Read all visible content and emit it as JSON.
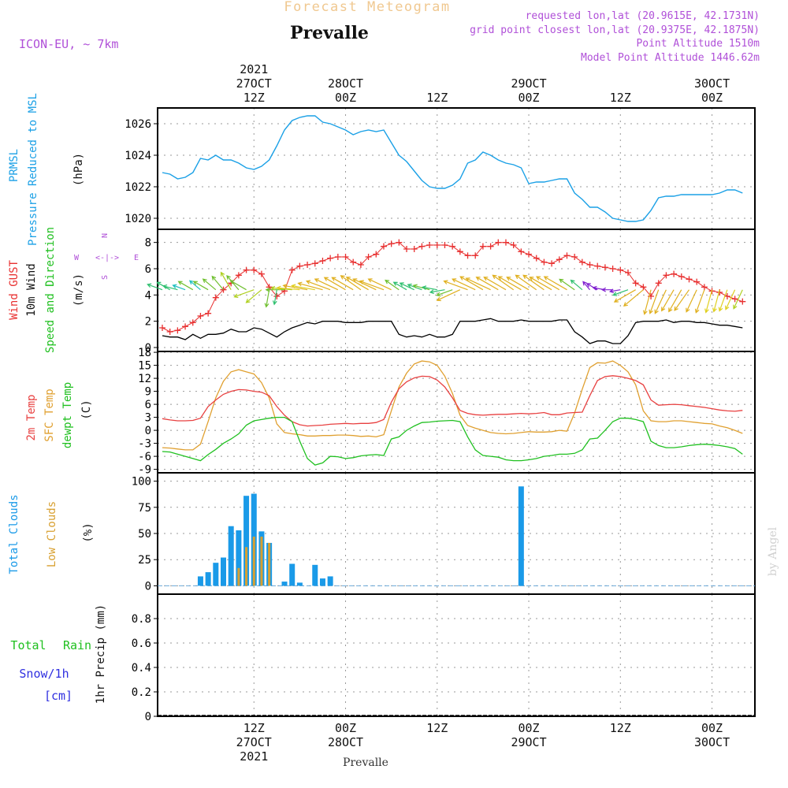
{
  "header": {
    "forecast_title": "Forecast Meteogram",
    "station": "Prevalle",
    "model": "ICON-EU, ~ 7km",
    "requested": "requested lon,lat (20.9615E, 42.1731N)",
    "gridpoint": "grid point closest lon,lat (20.9375E, 42.1875N)",
    "point_alt": "Point Altitude 1510m",
    "model_alt": "Model Point Altitude 1446.62m",
    "credit": "by Angel",
    "footer_station": "Prevalle"
  },
  "time_axis": {
    "top_labels": [
      {
        "t": 12,
        "lines": [
          "2021",
          "27OCT",
          "12Z"
        ]
      },
      {
        "t": 24,
        "lines": [
          "28OCT",
          "00Z"
        ]
      },
      {
        "t": 36,
        "lines": [
          "12Z"
        ]
      },
      {
        "t": 48,
        "lines": [
          "29OCT",
          "00Z"
        ]
      },
      {
        "t": 60,
        "lines": [
          "12Z"
        ]
      },
      {
        "t": 72,
        "lines": [
          "30OCT",
          "00Z"
        ]
      }
    ],
    "bottom_labels": [
      {
        "t": 12,
        "lines": [
          "12Z",
          "27OCT",
          "2021"
        ]
      },
      {
        "t": 24,
        "lines": [
          "00Z",
          "28OCT"
        ]
      },
      {
        "t": 36,
        "lines": [
          "12Z"
        ]
      },
      {
        "t": 48,
        "lines": [
          "00Z",
          "29OCT"
        ]
      },
      {
        "t": 60,
        "lines": [
          "12Z"
        ]
      },
      {
        "t": 72,
        "lines": [
          "00Z",
          "30OCT"
        ]
      }
    ],
    "range": [
      0,
      77
    ]
  },
  "panel_labels": {
    "pressure": {
      "lines": [
        "PRMSL",
        "Pressure Reduced to MSL"
      ],
      "unit": "(hPa)"
    },
    "wind": {
      "gust": "Wind GUST",
      "wind10": "10m Wind",
      "dir": "Speed and Direction",
      "unit": "(m/s)",
      "compass_n": "N",
      "compass_s": "S",
      "compass_w": "W",
      "compass_e": "E",
      "compass_arrow": "<-|->"
    },
    "temp": {
      "t2m": "2m Temp",
      "sfc": "SFC Temp",
      "dew": "dewpt Temp",
      "unit": "(C)"
    },
    "clouds": {
      "total": "Total Clouds",
      "low": "Low Clouds",
      "unit": "(%)"
    },
    "precip": {
      "rain_a": "Total",
      "rain_b": "Rain",
      "snow": "Snow/1h",
      "snow_unit": "[cm]",
      "unit": "1hr Precip (mm)"
    }
  },
  "colors": {
    "pressure": "#1aa0e6",
    "gust": "#e83030",
    "wind": "#000000",
    "t2m": "#e84040",
    "sfc": "#e0a030",
    "dew": "#20c020",
    "total_cloud": "#1a9ae8",
    "low_cloud": "#d8a030",
    "title_orange": "#f0c890",
    "purple": "#b050d8",
    "rain": "#20c020",
    "snow": "#3030e0"
  },
  "chart_data": [
    {
      "type": "line",
      "title": "PRMSL Pressure Reduced to MSL",
      "ylabel": "(hPa)",
      "ylim": [
        1019.3,
        1027.0
      ],
      "yticks": [
        1020,
        1022,
        1024,
        1026
      ],
      "x": [
        0,
        1,
        2,
        3,
        4,
        5,
        6,
        7,
        8,
        9,
        10,
        11,
        12,
        13,
        14,
        15,
        16,
        17,
        18,
        19,
        20,
        21,
        22,
        23,
        24,
        25,
        26,
        27,
        28,
        29,
        30,
        31,
        32,
        33,
        34,
        35,
        36,
        37,
        38,
        39,
        40,
        41,
        42,
        43,
        44,
        45,
        46,
        47,
        48,
        49,
        50,
        51,
        52,
        53,
        54,
        55,
        56,
        57,
        58,
        59,
        60,
        61,
        62,
        63,
        64,
        65,
        66,
        67,
        68,
        69,
        70,
        71,
        72,
        73,
        74,
        75,
        76
      ],
      "series": [
        {
          "name": "PRMSL",
          "values": [
            1022.9,
            1022.8,
            1022.5,
            1022.6,
            1022.9,
            1023.8,
            1023.7,
            1024.0,
            1023.7,
            1023.7,
            1023.5,
            1023.2,
            1023.1,
            1023.3,
            1023.7,
            1024.6,
            1025.6,
            1026.2,
            1026.4,
            1026.5,
            1026.5,
            1026.1,
            1026.0,
            1025.8,
            1025.6,
            1025.3,
            1025.5,
            1025.6,
            1025.5,
            1025.6,
            1024.8,
            1024.0,
            1023.6,
            1023.0,
            1022.4,
            1022.0,
            1021.9,
            1021.9,
            1022.1,
            1022.5,
            1023.5,
            1023.7,
            1024.2,
            1024.0,
            1023.7,
            1023.5,
            1023.4,
            1023.2,
            1022.2,
            1022.3,
            1022.3,
            1022.4,
            1022.5,
            1022.5,
            1021.6,
            1021.2,
            1020.7,
            1020.7,
            1020.4,
            1020.0,
            1019.9,
            1019.8,
            1019.8,
            1019.9,
            1020.5,
            1021.3,
            1021.4,
            1021.4,
            1021.5,
            1021.5,
            1021.5,
            1021.5,
            1021.5,
            1021.6,
            1021.8,
            1021.8,
            1021.6
          ]
        }
      ]
    },
    {
      "type": "line",
      "title": "Wind GUST / 10m Wind Speed and Direction",
      "ylabel": "(m/s)",
      "ylim": [
        -0.3,
        9.0
      ],
      "yticks": [
        0,
        2,
        4,
        6,
        8
      ],
      "x": [
        0,
        1,
        2,
        3,
        4,
        5,
        6,
        7,
        8,
        9,
        10,
        11,
        12,
        13,
        14,
        15,
        16,
        17,
        18,
        19,
        20,
        21,
        22,
        23,
        24,
        25,
        26,
        27,
        28,
        29,
        30,
        31,
        32,
        33,
        34,
        35,
        36,
        37,
        38,
        39,
        40,
        41,
        42,
        43,
        44,
        45,
        46,
        47,
        48,
        49,
        50,
        51,
        52,
        53,
        54,
        55,
        56,
        57,
        58,
        59,
        60,
        61,
        62,
        63,
        64,
        65,
        66,
        67,
        68,
        69,
        70,
        71,
        72,
        73,
        74,
        75,
        76
      ],
      "series": [
        {
          "name": "Wind GUST",
          "values": [
            1.5,
            1.2,
            1.3,
            1.6,
            1.9,
            2.4,
            2.6,
            3.8,
            4.4,
            4.9,
            5.5,
            5.9,
            5.9,
            5.6,
            4.6,
            3.9,
            4.3,
            5.9,
            6.2,
            6.3,
            6.4,
            6.6,
            6.8,
            6.9,
            6.9,
            6.5,
            6.3,
            6.9,
            7.1,
            7.7,
            7.9,
            8.0,
            7.5,
            7.5,
            7.7,
            7.8,
            7.8,
            7.8,
            7.7,
            7.3,
            7.0,
            7.0,
            7.7,
            7.7,
            8.0,
            8.0,
            7.8,
            7.3,
            7.1,
            6.8,
            6.5,
            6.4,
            6.7,
            7.0,
            6.9,
            6.5,
            6.3,
            6.2,
            6.1,
            6.0,
            5.9,
            5.7,
            4.9,
            4.6,
            3.9,
            4.9,
            5.5,
            5.6,
            5.4,
            5.2,
            5.0,
            4.6,
            4.3,
            4.2,
            3.9,
            3.7,
            3.5
          ]
        },
        {
          "name": "10m Wind",
          "values": [
            0.9,
            0.8,
            0.8,
            0.6,
            1.0,
            0.7,
            1.0,
            1.0,
            1.1,
            1.4,
            1.2,
            1.2,
            1.5,
            1.4,
            1.1,
            0.8,
            1.2,
            1.5,
            1.7,
            1.9,
            1.8,
            2.0,
            2.0,
            2.0,
            1.9,
            1.9,
            1.9,
            2.0,
            2.0,
            2.0,
            2.0,
            1.0,
            0.8,
            0.9,
            0.8,
            1.0,
            0.8,
            0.8,
            1.0,
            2.0,
            2.0,
            2.0,
            2.1,
            2.2,
            2.0,
            2.0,
            2.0,
            2.1,
            2.0,
            2.0,
            2.0,
            2.0,
            2.1,
            2.1,
            1.2,
            0.8,
            0.3,
            0.5,
            0.5,
            0.3,
            0.3,
            0.9,
            1.9,
            2.0,
            2.0,
            2.0,
            2.1,
            1.9,
            2.0,
            2.0,
            1.9,
            1.9,
            1.8,
            1.7,
            1.7,
            1.6,
            1.5
          ]
        },
        {
          "name": "Direction (deg, to)",
          "values": [
            290,
            300,
            285,
            290,
            300,
            310,
            300,
            310,
            320,
            330,
            320,
            300,
            250,
            230,
            190,
            190,
            270,
            275,
            275,
            280,
            280,
            285,
            290,
            295,
            300,
            300,
            305,
            300,
            295,
            290,
            295,
            305,
            300,
            295,
            290,
            285,
            280,
            260,
            250,
            245,
            290,
            295,
            300,
            295,
            300,
            300,
            305,
            300,
            300,
            305,
            305,
            300,
            300,
            300,
            305,
            310,
            320,
            300,
            280,
            270,
            260,
            250,
            240,
            230,
            195,
            200,
            205,
            210,
            210,
            215,
            205,
            200,
            195,
            195,
            200,
            205,
            205
          ]
        }
      ]
    },
    {
      "type": "line",
      "title": "2m Temp / SFC Temp / dewpt Temp",
      "ylabel": "(C)",
      "ylim": [
        -9.8,
        18.2
      ],
      "yticks": [
        -9,
        -6,
        -3,
        0,
        3,
        6,
        9,
        12,
        15,
        18
      ],
      "x": [
        0,
        1,
        2,
        3,
        4,
        5,
        6,
        7,
        8,
        9,
        10,
        11,
        12,
        13,
        14,
        15,
        16,
        17,
        18,
        19,
        20,
        21,
        22,
        23,
        24,
        25,
        26,
        27,
        28,
        29,
        30,
        31,
        32,
        33,
        34,
        35,
        36,
        37,
        38,
        39,
        40,
        41,
        42,
        43,
        44,
        45,
        46,
        47,
        48,
        49,
        50,
        51,
        52,
        53,
        54,
        55,
        56,
        57,
        58,
        59,
        60,
        61,
        62,
        63,
        64,
        65,
        66,
        67,
        68,
        69,
        70,
        71,
        72,
        73,
        74,
        75,
        76
      ],
      "series": [
        {
          "name": "2m Temp",
          "values": [
            2.7,
            2.4,
            2.2,
            2.2,
            2.3,
            2.8,
            5.5,
            7.0,
            8.3,
            9.0,
            9.4,
            9.3,
            9.0,
            8.8,
            8.0,
            5.5,
            3.5,
            2.0,
            1.3,
            1.0,
            1.1,
            1.2,
            1.4,
            1.5,
            1.6,
            1.5,
            1.6,
            1.6,
            1.8,
            2.5,
            6.5,
            9.6,
            11.2,
            12.1,
            12.5,
            12.4,
            11.6,
            10.0,
            7.5,
            4.6,
            3.9,
            3.6,
            3.5,
            3.6,
            3.7,
            3.7,
            3.8,
            3.9,
            3.8,
            3.9,
            4.1,
            3.6,
            3.6,
            4.0,
            4.1,
            4.2,
            8.0,
            11.5,
            12.4,
            12.6,
            12.4,
            12.0,
            11.5,
            10.5,
            7.0,
            5.8,
            5.9,
            6.0,
            5.9,
            5.7,
            5.5,
            5.3,
            5.0,
            4.7,
            4.5,
            4.4,
            4.6
          ]
        },
        {
          "name": "SFC Temp",
          "values": [
            -4.0,
            -4.1,
            -4.3,
            -4.5,
            -4.5,
            -3.2,
            2.0,
            7.5,
            11.3,
            13.5,
            14.0,
            13.5,
            13.0,
            11.0,
            7.5,
            1.5,
            -0.5,
            -0.8,
            -1.0,
            -1.3,
            -1.3,
            -1.2,
            -1.2,
            -1.1,
            -1.1,
            -1.2,
            -1.4,
            -1.3,
            -1.5,
            -1.0,
            4.5,
            10.0,
            13.2,
            15.3,
            16.0,
            15.8,
            15.0,
            12.5,
            8.5,
            3.5,
            1.1,
            0.5,
            0.0,
            -0.5,
            -0.7,
            -0.8,
            -0.7,
            -0.5,
            -0.3,
            -0.4,
            -0.4,
            -0.3,
            0.0,
            -0.2,
            4.0,
            9.5,
            14.5,
            15.6,
            15.5,
            16.0,
            15.0,
            13.5,
            10.5,
            4.5,
            2.2,
            2.0,
            2.0,
            2.2,
            2.2,
            2.0,
            1.8,
            1.6,
            1.5,
            1.0,
            0.6,
            0.0,
            -0.7
          ]
        },
        {
          "name": "dewpt Temp",
          "values": [
            -4.9,
            -5.0,
            -5.5,
            -6.0,
            -6.5,
            -7.0,
            -5.6,
            -4.4,
            -3.0,
            -2.0,
            -0.8,
            1.2,
            2.2,
            2.5,
            2.8,
            3.0,
            3.0,
            2.0,
            -2.5,
            -6.5,
            -8.0,
            -7.5,
            -6.0,
            -6.1,
            -6.5,
            -6.3,
            -5.9,
            -5.7,
            -5.6,
            -5.8,
            -2.0,
            -1.5,
            0.0,
            1.0,
            1.8,
            1.9,
            2.1,
            2.2,
            2.3,
            2.0,
            -1.5,
            -4.5,
            -5.8,
            -6.0,
            -6.2,
            -6.8,
            -7.0,
            -7.0,
            -6.8,
            -6.5,
            -6.0,
            -5.8,
            -5.5,
            -5.5,
            -5.3,
            -4.5,
            -2.0,
            -1.8,
            0.0,
            2.0,
            2.8,
            2.8,
            2.5,
            2.0,
            -2.5,
            -3.5,
            -4.0,
            -4.0,
            -3.8,
            -3.5,
            -3.3,
            -3.2,
            -3.3,
            -3.5,
            -3.8,
            -4.2,
            -5.5
          ]
        }
      ]
    },
    {
      "type": "bar",
      "title": "Total Clouds / Low Clouds",
      "ylabel": "(%)",
      "ylim": [
        -8,
        108
      ],
      "yticks": [
        0,
        25,
        50,
        75,
        100
      ],
      "x": [
        5,
        6,
        7,
        8,
        9,
        10,
        11,
        12,
        13,
        14,
        15,
        16,
        17,
        18,
        19,
        20,
        21,
        22,
        47
      ],
      "series": [
        {
          "name": "Total Clouds",
          "values": [
            9,
            13,
            22,
            27,
            57,
            53,
            86,
            88,
            52,
            41,
            0,
            4,
            21,
            3,
            0,
            20,
            7,
            9,
            95
          ]
        },
        {
          "name": "Low Clouds",
          "values": [
            0,
            0,
            0,
            0,
            0,
            17,
            37,
            47,
            47,
            41,
            0,
            0,
            0,
            0,
            0,
            0,
            0,
            0,
            0
          ]
        }
      ]
    },
    {
      "type": "bar",
      "title": "1hr Precip (mm)",
      "ylabel": "1hr Precip (mm)",
      "ylim": [
        0,
        1.0
      ],
      "yticks": [
        0,
        0.2,
        0.4,
        0.6,
        0.8
      ],
      "series": [
        {
          "name": "Total Rain",
          "values": []
        },
        {
          "name": "Snow/1h",
          "values": []
        }
      ]
    }
  ]
}
